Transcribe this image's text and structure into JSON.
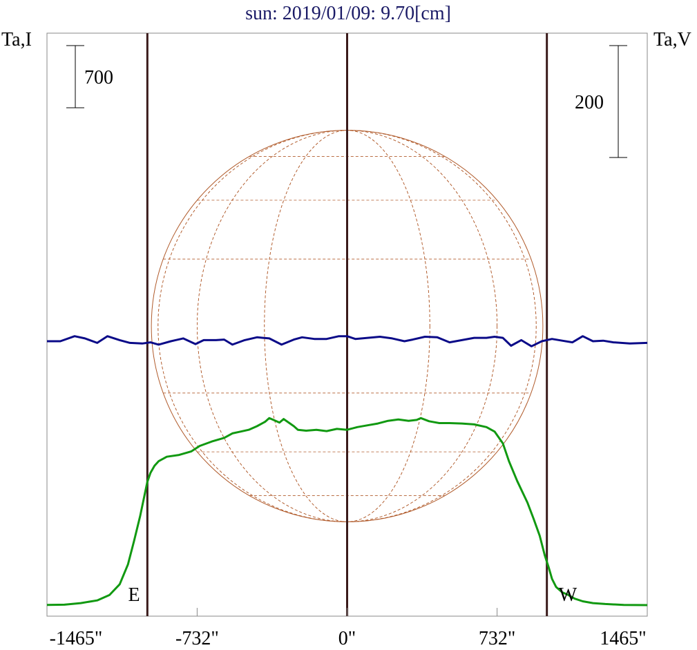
{
  "title": "sun: 2019/01/09: 9.70[cm]",
  "colors": {
    "title": "#1a1a66",
    "intensity": "#119911",
    "polarization": "#0a0a88",
    "limbs": "#3a1a1a",
    "disk": "#b05a2a",
    "frame": "#888888",
    "text": "#000000"
  },
  "chart_data": {
    "type": "line",
    "title": "sun: 2019/01/09: 9.70[cm]",
    "xlim": [
      -1465,
      1465
    ],
    "xticks": [
      -1465,
      -732,
      0,
      732,
      1465
    ],
    "xtick_labels": [
      "-1465\"",
      "-732\"",
      "0\"",
      "732\"",
      "1465\""
    ],
    "left_axis_label": "Ta,I",
    "right_axis_label": "Ta,V",
    "left_scale_bar_label": "700",
    "right_scale_bar_label": "200",
    "limb_markers": [
      {
        "label": "E",
        "x": -975
      },
      {
        "label": "W",
        "x": 975
      }
    ],
    "center_marker_x": 0,
    "solar_radius_arcsec": 975,
    "grid": false,
    "series": [
      {
        "axis": "left",
        "x": [
          -1465,
          -1380,
          -1300,
          -1220,
          -1160,
          -1110,
          -1070,
          -1040,
          -1010,
          -990,
          -975,
          -960,
          -940,
          -920,
          -880,
          -820,
          -760,
          -720,
          -660,
          -600,
          -560,
          -520,
          -480,
          -440,
          -400,
          -380,
          -330,
          -310,
          -260,
          -240,
          -200,
          -150,
          -100,
          -50,
          0,
          50,
          100,
          150,
          200,
          250,
          300,
          340,
          360,
          400,
          450,
          500,
          560,
          620,
          680,
          720,
          760,
          790,
          830,
          880,
          910,
          940,
          965,
          985,
          1000,
          1020,
          1050,
          1080,
          1110,
          1150,
          1200,
          1260,
          1350,
          1465
        ],
        "values": [
          10,
          12,
          30,
          60,
          120,
          240,
          460,
          720,
          1000,
          1220,
          1380,
          1480,
          1560,
          1610,
          1660,
          1680,
          1720,
          1780,
          1830,
          1870,
          1920,
          1940,
          1960,
          2000,
          2050,
          2090,
          2040,
          2080,
          2000,
          1960,
          1950,
          1960,
          1945,
          1970,
          1960,
          1990,
          2010,
          2030,
          2060,
          2075,
          2060,
          2070,
          2090,
          2055,
          2035,
          2035,
          2030,
          2020,
          1990,
          1940,
          1810,
          1610,
          1390,
          1150,
          970,
          780,
          560,
          420,
          300,
          210,
          150,
          120,
          80,
          50,
          30,
          20,
          10,
          8
        ]
      },
      {
        "axis": "right",
        "x": [
          -1465,
          -1400,
          -1330,
          -1280,
          -1220,
          -1170,
          -1110,
          -1060,
          -1000,
          -960,
          -920,
          -860,
          -800,
          -740,
          -700,
          -640,
          -600,
          -560,
          -500,
          -440,
          -380,
          -320,
          -260,
          -220,
          -160,
          -100,
          -40,
          0,
          40,
          100,
          160,
          220,
          280,
          320,
          380,
          440,
          500,
          560,
          620,
          680,
          720,
          760,
          800,
          850,
          900,
          950,
          1000,
          1050,
          1100,
          1150,
          1200,
          1250,
          1300,
          1380,
          1465
        ],
        "values": [
          0,
          0,
          9,
          5,
          -3,
          9,
          2,
          -3,
          -4,
          -2,
          -6,
          0,
          5,
          -5,
          2,
          2,
          3,
          -6,
          2,
          7,
          5,
          -6,
          3,
          7,
          4,
          4,
          9,
          9,
          4,
          6,
          8,
          5,
          0,
          3,
          8,
          7,
          -2,
          2,
          6,
          6,
          8,
          6,
          -8,
          2,
          -9,
          0,
          4,
          1,
          -2,
          9,
          0,
          1,
          -2,
          -4,
          -3
        ]
      }
    ]
  }
}
